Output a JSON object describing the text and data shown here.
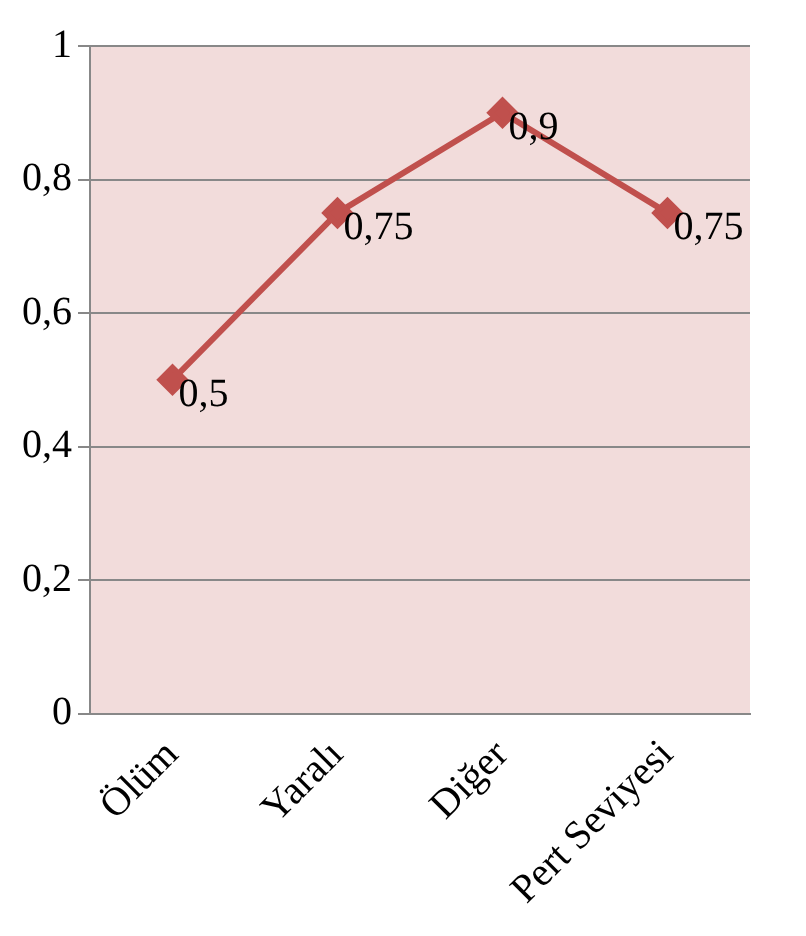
{
  "chart_data": {
    "type": "line",
    "categories": [
      "Ölüm",
      "Yaralı",
      "Diğer",
      "Pert Seviyesi"
    ],
    "series": [
      {
        "color": "#c0504d",
        "values": [
          0.5,
          0.75,
          0.9,
          0.75
        ],
        "value_labels": [
          "0,5",
          "0,75",
          "0,9",
          "0,75"
        ]
      }
    ],
    "ylim": [
      0,
      1
    ],
    "yticks": [
      {
        "value": 0,
        "label": "0"
      },
      {
        "value": 0.2,
        "label": "0,2"
      },
      {
        "value": 0.4,
        "label": "0,4"
      },
      {
        "value": 0.6,
        "label": "0,6"
      },
      {
        "value": 0.8,
        "label": "0,8"
      },
      {
        "value": 1,
        "label": "1"
      }
    ],
    "grid": "y",
    "marker": "diamond",
    "line_style": "solid",
    "legend": false
  }
}
